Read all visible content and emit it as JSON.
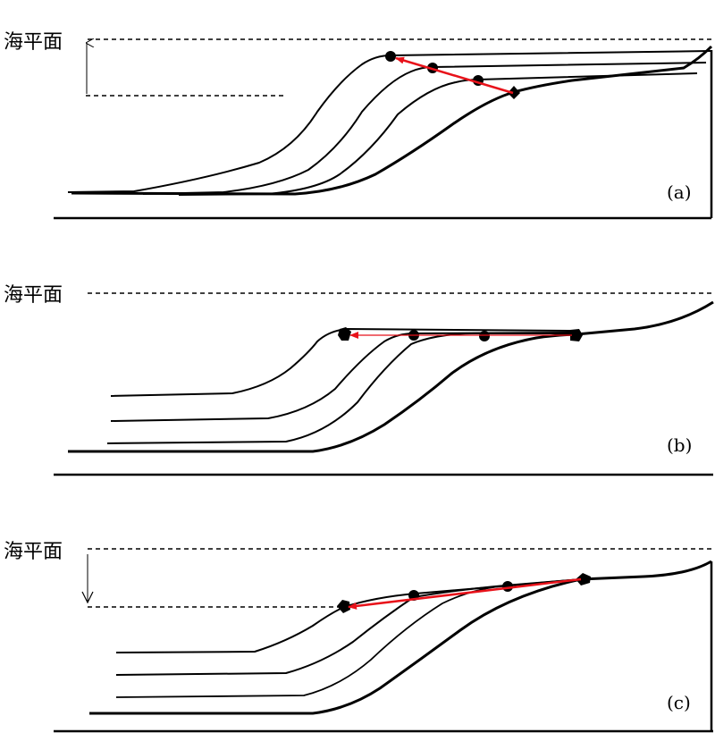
{
  "panels": [
    {
      "sea_level_label": "海平面",
      "panel_label": "(a)",
      "sea_level_change": "rise"
    },
    {
      "sea_level_label": "海平面",
      "panel_label": "(b)",
      "sea_level_change": "stable"
    },
    {
      "sea_level_label": "海平面",
      "panel_label": "(c)",
      "sea_level_change": "fall"
    }
  ],
  "colors": {
    "trajectory": "#e8121a",
    "profile": "#000000",
    "sea_level": "#000000"
  }
}
